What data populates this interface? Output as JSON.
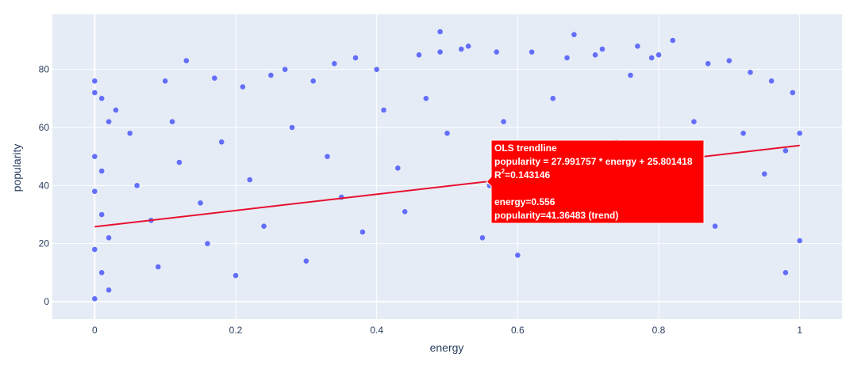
{
  "chart_data": {
    "type": "scatter",
    "xlabel": "energy",
    "ylabel": "popularity",
    "xlim": [
      -0.06,
      1.06
    ],
    "ylim": [
      -6,
      99
    ],
    "x_ticks": [
      0,
      0.2,
      0.4,
      0.6,
      0.8,
      1
    ],
    "x_tick_labels": [
      "0",
      "0.2",
      "0.4",
      "0.6",
      "0.8",
      "1"
    ],
    "y_ticks": [
      0,
      20,
      40,
      60,
      80
    ],
    "y_tick_labels": [
      "0",
      "20",
      "40",
      "60",
      "80"
    ],
    "grid": true,
    "legend": "none",
    "marker_color": "#636efa",
    "trendline_color": "#e8102f",
    "plot_bg": "#e5ecf6",
    "series": [
      {
        "values": [
          [
            0.0,
            76
          ],
          [
            0.0,
            72
          ],
          [
            0.01,
            70
          ],
          [
            0.02,
            62
          ],
          [
            0.0,
            50
          ],
          [
            0.01,
            45
          ],
          [
            0.0,
            38
          ],
          [
            0.01,
            30
          ],
          [
            0.02,
            22
          ],
          [
            0.0,
            18
          ],
          [
            0.01,
            10
          ],
          [
            0.02,
            4
          ],
          [
            0.0,
            1
          ],
          [
            0.03,
            66
          ],
          [
            0.05,
            58
          ],
          [
            0.06,
            40
          ],
          [
            0.08,
            28
          ],
          [
            0.09,
            12
          ],
          [
            0.1,
            76
          ],
          [
            0.11,
            62
          ],
          [
            0.12,
            48
          ],
          [
            0.13,
            83
          ],
          [
            0.15,
            34
          ],
          [
            0.16,
            20
          ],
          [
            0.17,
            77
          ],
          [
            0.18,
            55
          ],
          [
            0.2,
            9
          ],
          [
            0.21,
            74
          ],
          [
            0.22,
            42
          ],
          [
            0.24,
            26
          ],
          [
            0.25,
            78
          ],
          [
            0.27,
            80
          ],
          [
            0.28,
            60
          ],
          [
            0.3,
            14
          ],
          [
            0.31,
            76
          ],
          [
            0.33,
            50
          ],
          [
            0.34,
            82
          ],
          [
            0.35,
            36
          ],
          [
            0.37,
            84
          ],
          [
            0.38,
            24
          ],
          [
            0.4,
            80
          ],
          [
            0.41,
            66
          ],
          [
            0.43,
            46
          ],
          [
            0.44,
            31
          ],
          [
            0.46,
            85
          ],
          [
            0.47,
            70
          ],
          [
            0.49,
            86
          ],
          [
            0.49,
            93
          ],
          [
            0.5,
            58
          ],
          [
            0.52,
            87
          ],
          [
            0.53,
            88
          ],
          [
            0.55,
            22
          ],
          [
            0.56,
            40
          ],
          [
            0.57,
            86
          ],
          [
            0.58,
            62
          ],
          [
            0.6,
            16
          ],
          [
            0.62,
            86
          ],
          [
            0.63,
            50
          ],
          [
            0.65,
            70
          ],
          [
            0.67,
            84
          ],
          [
            0.68,
            92
          ],
          [
            0.69,
            30
          ],
          [
            0.71,
            85
          ],
          [
            0.72,
            87
          ],
          [
            0.74,
            55
          ],
          [
            0.76,
            78
          ],
          [
            0.77,
            88
          ],
          [
            0.79,
            84
          ],
          [
            0.8,
            85
          ],
          [
            0.82,
            90
          ],
          [
            0.83,
            40
          ],
          [
            0.85,
            62
          ],
          [
            0.87,
            82
          ],
          [
            0.88,
            26
          ],
          [
            0.9,
            83
          ],
          [
            0.92,
            58
          ],
          [
            0.93,
            79
          ],
          [
            0.95,
            44
          ],
          [
            0.96,
            76
          ],
          [
            0.98,
            52
          ],
          [
            0.99,
            72
          ],
          [
            1.0,
            21
          ],
          [
            1.0,
            58
          ],
          [
            0.98,
            10
          ]
        ]
      }
    ],
    "trendline": {
      "name": "OLS trendline",
      "equation": "popularity = 27.991757 * energy + 25.801418",
      "slope": 27.991757,
      "intercept": 25.801418,
      "r2_prefix": "R",
      "r2_sup": "2",
      "r2_value": "=0.143146",
      "x_range": [
        0,
        1
      ]
    },
    "hover": {
      "energy_label": "energy=0.556",
      "popularity_label": "popularity=41.36483 (trend)",
      "x": 0.556,
      "y": 41.36483,
      "fill": "#ff0000"
    }
  }
}
